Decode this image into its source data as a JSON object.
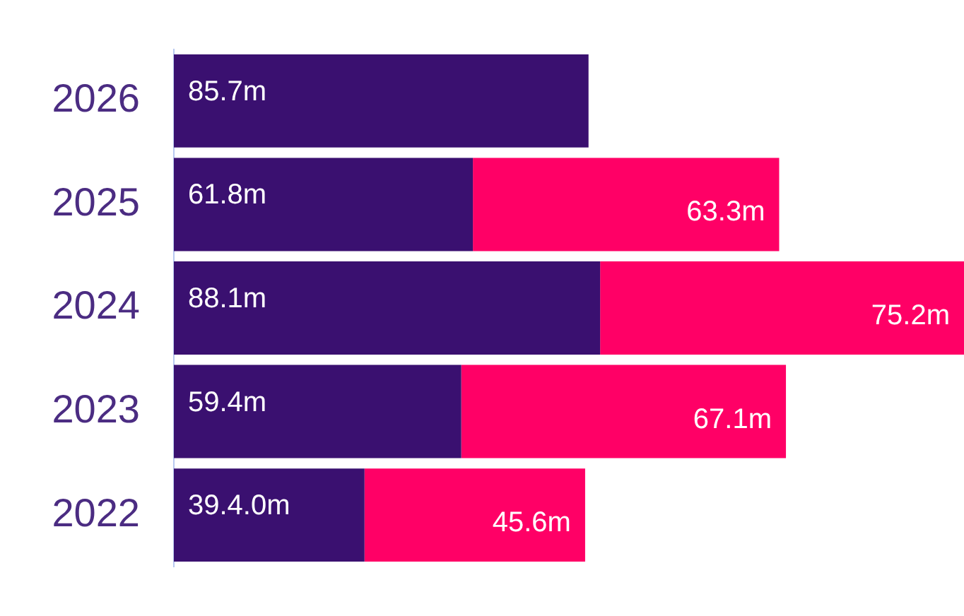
{
  "chart_data": {
    "type": "bar",
    "orientation": "horizontal",
    "stacked": true,
    "categories": [
      "2026",
      "2025",
      "2024",
      "2023",
      "2022"
    ],
    "series": [
      {
        "color": "#3a1070",
        "values": [
          85.7,
          61.8,
          88.1,
          59.4,
          39.4
        ],
        "value_labels": [
          "85.7m",
          "61.8m",
          "88.1m",
          "59.4m",
          "39.4.0m"
        ]
      },
      {
        "color": "#ff0066",
        "values": [
          null,
          63.3,
          75.2,
          67.1,
          45.6
        ],
        "value_labels": [
          null,
          "63.3m",
          "75.2m",
          "67.1m",
          "45.6m"
        ]
      }
    ],
    "grid": false,
    "legend": false
  }
}
